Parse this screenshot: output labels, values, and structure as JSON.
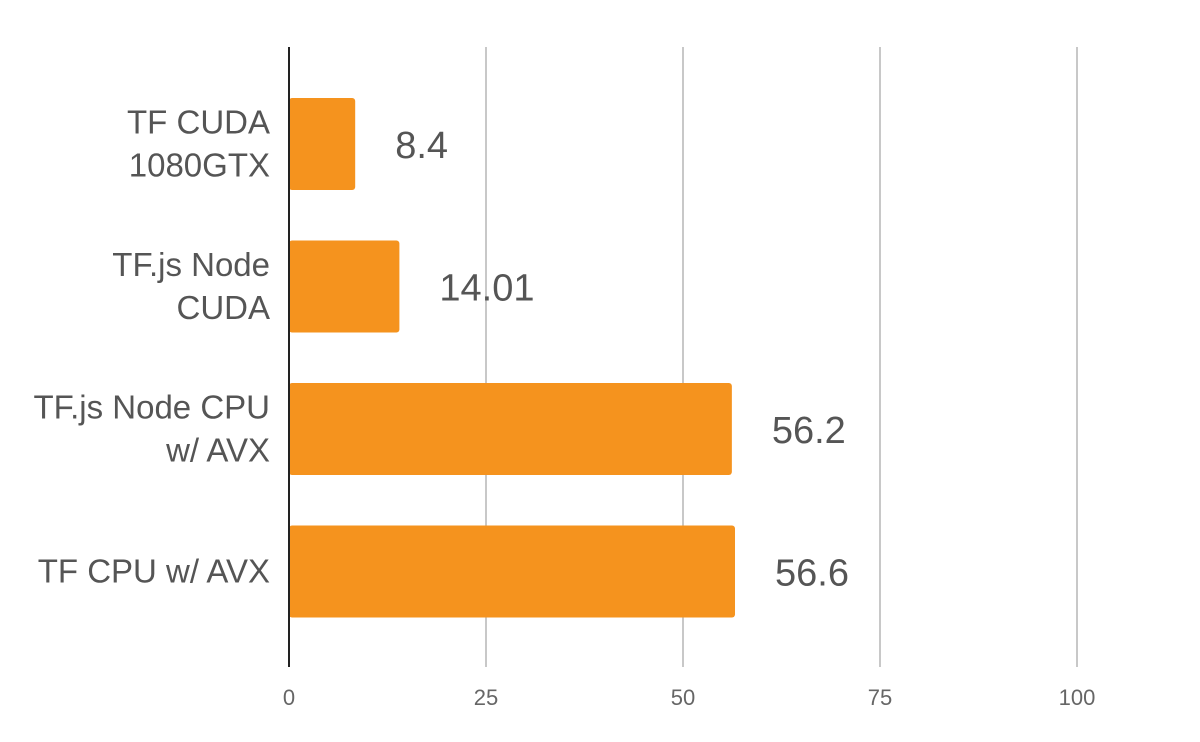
{
  "chart_data": {
    "type": "bar",
    "orientation": "horizontal",
    "categories": [
      [
        "TF CUDA",
        "1080GTX"
      ],
      [
        "TF.js Node",
        "CUDA"
      ],
      [
        "TF.js Node CPU",
        "w/ AVX"
      ],
      [
        "TF CPU w/ AVX"
      ]
    ],
    "values": [
      8.4,
      14.01,
      56.2,
      56.6
    ],
    "value_labels": [
      "8.4",
      "14.01",
      "56.2",
      "56.6"
    ],
    "xlim": [
      0,
      100
    ],
    "xticks": [
      0,
      25,
      50,
      75,
      100
    ],
    "xtick_labels": [
      "0",
      "25",
      "50",
      "75",
      "100"
    ],
    "grid": true,
    "legend": "none",
    "bar_color": "#f5931e",
    "grid_color": "#c8c8c8",
    "axis_color": "#222222",
    "text_color": "#555555"
  }
}
